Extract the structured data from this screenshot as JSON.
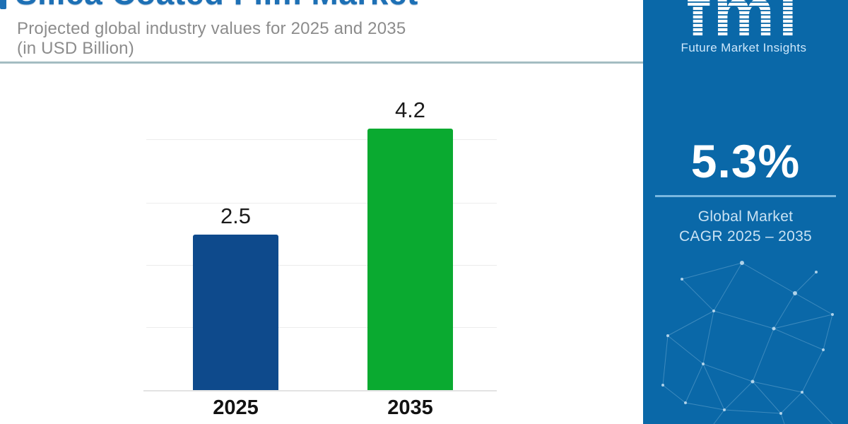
{
  "header": {
    "title": "Silica Coated Film Market",
    "subtitle_line1": "Projected global industry values for 2025 and 2035",
    "subtitle_line2": "(in USD Billion)"
  },
  "chart_data": {
    "type": "bar",
    "title": "Silica Coated Film Market",
    "subtitle": "Projected global industry values for 2025 and 2035 (in USD Billion)",
    "categories": [
      "2025",
      "2035"
    ],
    "values": [
      2.5,
      4.2
    ],
    "value_labels": [
      "2.5",
      "4.2"
    ],
    "unit": "USD Billion",
    "xlabel": "",
    "ylabel": "",
    "ylim": [
      0,
      4.5
    ],
    "grid": true,
    "legend_position": "none",
    "bar_colors": [
      "#0e4a8c",
      "#0aaa30"
    ]
  },
  "sidebar": {
    "logo_text": "fmi",
    "logo_subtitle": "Future Market Insights",
    "cagr_value": "5.3%",
    "cagr_label_line1": "Global Market",
    "cagr_label_line2": "CAGR 2025 – 2035"
  },
  "colors": {
    "title_blue": "#1d70b5",
    "subtitle_gray": "#8c8c8c",
    "header_divider": "#a4bdc2",
    "sidebar_background": "#0a68a8",
    "sidebar_underline": "#79b7e0",
    "sidebar_light_text": "#c9e2f3",
    "bar_2025": "#0e4a8c",
    "bar_2035": "#0aaa30"
  }
}
